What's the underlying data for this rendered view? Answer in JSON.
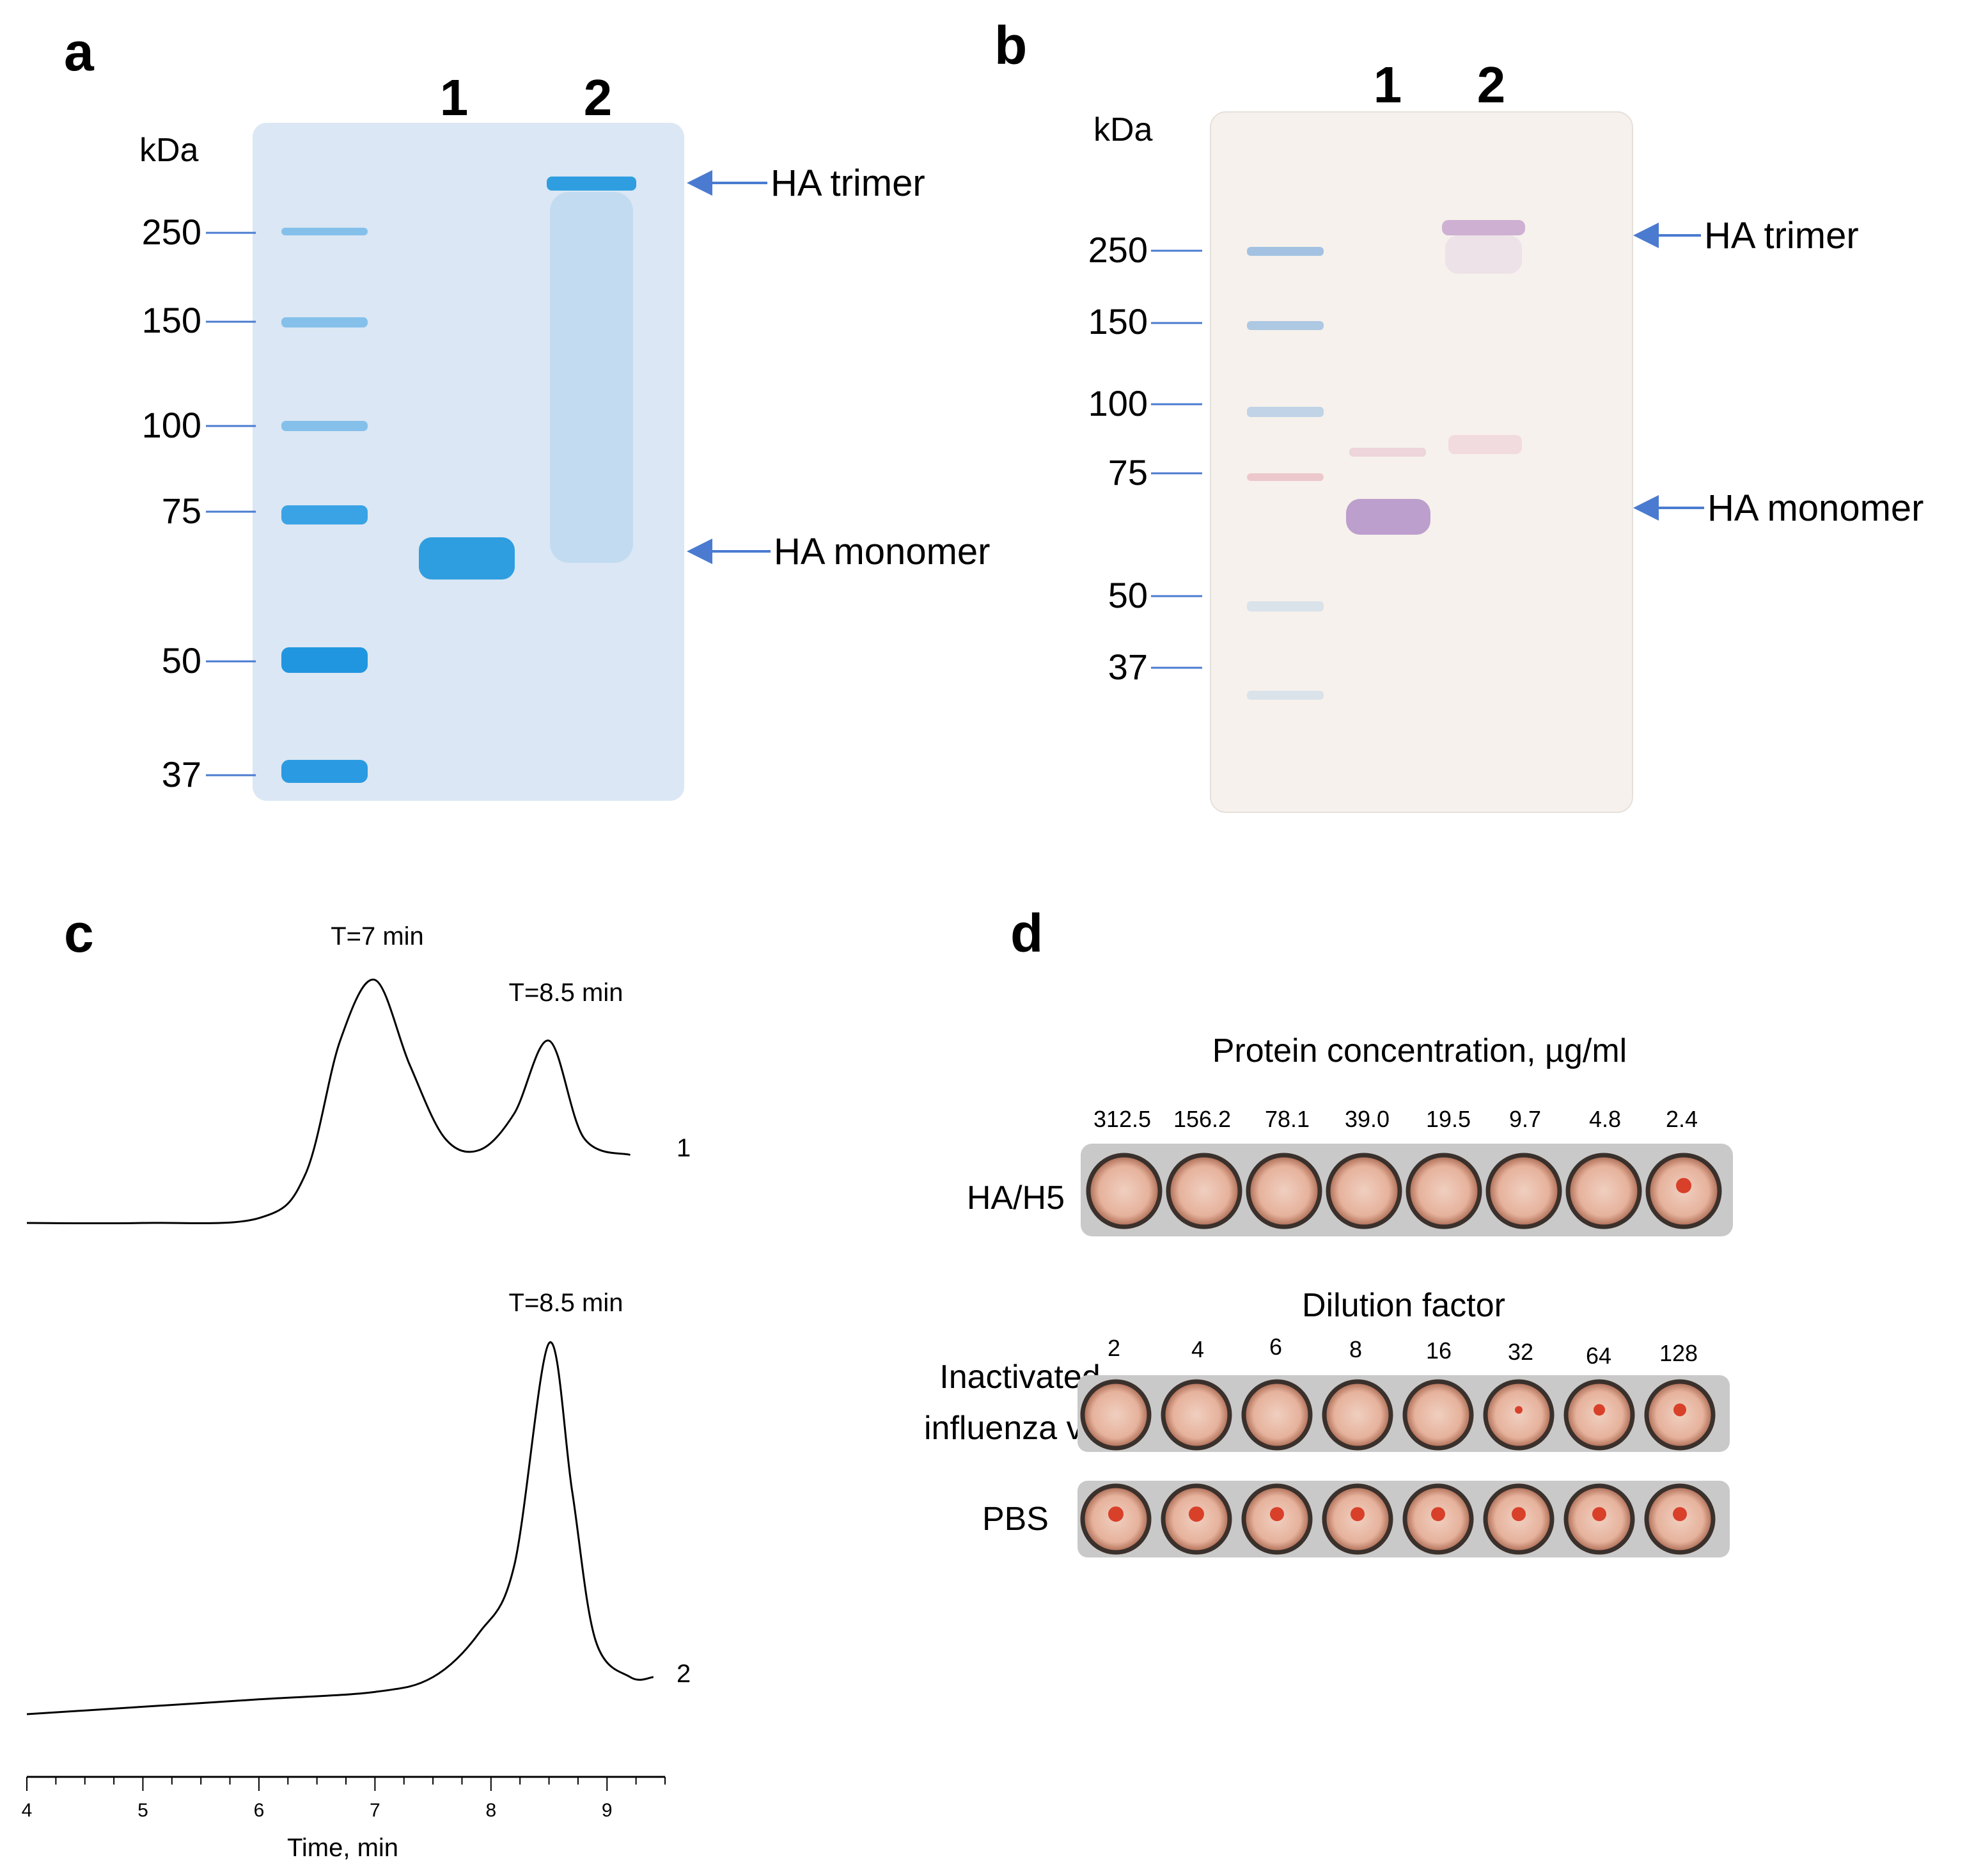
{
  "panel_a": {
    "letter": "a",
    "lanes": [
      "1",
      "2"
    ],
    "unit": "kDa",
    "markers": [
      "250",
      "150",
      "100",
      "75",
      "50",
      "37"
    ],
    "annotations": [
      "HA trimer",
      "HA monomer"
    ],
    "colors": {
      "gel": "#dbe7f4",
      "band": "#2f9ee0",
      "arrow": "#4a7bd0"
    }
  },
  "panel_b": {
    "letter": "b",
    "lanes": [
      "1",
      "2"
    ],
    "unit": "kDa",
    "markers": [
      "250",
      "150",
      "100",
      "75",
      "50",
      "37"
    ],
    "annotations": [
      "HA trimer",
      "HA monomer"
    ],
    "colors": {
      "membrane": "#f6f1ec",
      "band": "#b190c8",
      "ladder": "#8fb6e0"
    }
  },
  "panel_c": {
    "letter": "c",
    "peak_labels": [
      "T=7 min",
      "T=8.5 min",
      "T=8.5 min"
    ],
    "trace_labels": [
      "1",
      "2"
    ],
    "x_ticks": [
      "4",
      "5",
      "6",
      "7",
      "8",
      "9"
    ],
    "xlabel": "Time, min"
  },
  "panel_d": {
    "letter": "d",
    "header1": "Protein concentration, µg/ml",
    "concentrations": [
      "312.5",
      "156.2",
      "78.1",
      "39.0",
      "19.5",
      "9.7",
      "4.8",
      "2.4"
    ],
    "row1_label": "HA/H5",
    "header2": "Dilution factor",
    "dilutions": [
      "2",
      "4",
      "6",
      "8",
      "16",
      "32",
      "64",
      "128"
    ],
    "row2_label_line1": "Inactivated",
    "row2_label_line2": "influenza virus",
    "row3_label": "PBS",
    "colors": {
      "plate": "#c9c9c9",
      "well_fill": "#eab6a3",
      "dot": "#d8402a"
    }
  },
  "chart_data": {
    "type": "line",
    "xlabel": "Time, min",
    "xlim": [
      4,
      9.5
    ],
    "series": [
      {
        "name": "1",
        "x": [
          4,
          5,
          6,
          6.4,
          6.7,
          7.0,
          7.3,
          7.6,
          7.9,
          8.2,
          8.5,
          8.8,
          9.2
        ],
        "y": [
          0.0,
          0.0,
          0.02,
          0.2,
          0.75,
          1.0,
          0.65,
          0.35,
          0.3,
          0.45,
          0.75,
          0.35,
          0.28
        ]
      },
      {
        "name": "2",
        "x": [
          4,
          5,
          6,
          7,
          7.5,
          7.9,
          8.2,
          8.5,
          8.7,
          8.9,
          9.2,
          9.4
        ],
        "y": [
          0.0,
          0.02,
          0.04,
          0.06,
          0.1,
          0.22,
          0.4,
          1.0,
          0.6,
          0.2,
          0.1,
          0.1
        ]
      }
    ]
  }
}
